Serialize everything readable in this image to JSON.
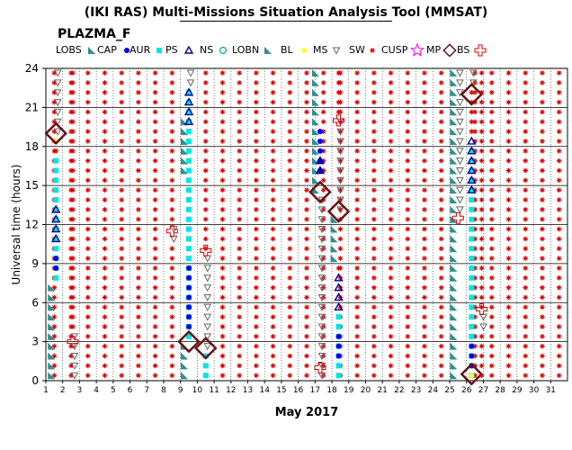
{
  "header": {
    "title": "(IKI RAS) Multi-Missions Situation Analysis Tool (MMSAT)",
    "subtitle": "PLAZMA_F"
  },
  "legend": [
    {
      "key": "lobs",
      "label": "LOBS",
      "icon": "teal-wedge"
    },
    {
      "key": "cap",
      "label": "CAP",
      "icon": "blue-dot"
    },
    {
      "key": "aur",
      "label": "AUR",
      "icon": "cyan-square"
    },
    {
      "key": "ps",
      "label": "PS",
      "icon": "blue-triangle"
    },
    {
      "key": "ns",
      "label": "NS",
      "icon": "cyan-circle"
    },
    {
      "key": "lobn",
      "label": "LOBN",
      "icon": "teal-wedge"
    },
    {
      "key": "bl",
      "label": "BL",
      "icon": "yellow-dot"
    },
    {
      "key": "ms",
      "label": "MS",
      "icon": "down-triangle"
    },
    {
      "key": "sw",
      "label": "SW",
      "icon": "red-asterisk"
    },
    {
      "key": "cusp",
      "label": "CUSP",
      "icon": "magenta-star"
    },
    {
      "key": "mp",
      "label": "MP",
      "icon": "dark-red-diamond"
    },
    {
      "key": "bs",
      "label": "BS",
      "icon": "red-cross"
    }
  ],
  "colors": {
    "lobs": "#2f8f8f",
    "lobn": "#2f8f8f",
    "cap": "#0000ee",
    "aur": "#00e5e5",
    "ps": "#000099",
    "ns": "#00aaaa",
    "bl": "#ffff33",
    "ms": "#666666",
    "sw": "#dd0000",
    "cusp": "#ee00ee",
    "mp": "#661111",
    "bs": "#dd0000",
    "grid": "#000000",
    "dotgrid": "#333333"
  },
  "chart_data": {
    "type": "scatter",
    "title": "(IKI RAS) Multi-Missions Situation Analysis Tool (MMSAT)",
    "subtitle": "PLAZMA_F",
    "xlabel": "May 2017",
    "ylabel": "Universal time (hours)",
    "x_ticks": [
      "1",
      "2",
      "3",
      "4",
      "5",
      "6",
      "7",
      "8",
      "9",
      "10",
      "11",
      "12",
      "13",
      "14",
      "15",
      "16",
      "17",
      "18",
      "19",
      "20",
      "21",
      "22",
      "23",
      "24",
      "25",
      "26",
      "27",
      "28",
      "29",
      "30",
      "31"
    ],
    "y_ticks": [
      "0",
      "3",
      "6",
      "9",
      "12",
      "15",
      "18",
      "21",
      "24"
    ],
    "xlim": [
      1,
      32
    ],
    "ylim": [
      0,
      24
    ],
    "grid": true,
    "legend_position": "top",
    "default_region": "SW",
    "day_columns": [
      {
        "day": 1.6,
        "segments": [
          {
            "region": "LOBS",
            "from": 0,
            "to": 7.5
          },
          {
            "region": "CAP",
            "from": 8.2,
            "to": 10
          },
          {
            "region": "AUR",
            "from": 7.8,
            "to": 17.5
          },
          {
            "region": "PS",
            "from": 10.5,
            "to": 13.5
          },
          {
            "region": "BL",
            "from": 17.8,
            "to": 18.4
          },
          {
            "region": "MS",
            "from": 18.5,
            "to": 24
          }
        ],
        "mp": [
          19
        ],
        "bs": []
      },
      {
        "day": 2.6,
        "segments": [
          {
            "region": "MS",
            "from": 0,
            "to": 3.5
          }
        ],
        "mp": [],
        "bs": [
          3
        ]
      },
      {
        "day": 8.5,
        "segments": [
          {
            "region": "MS",
            "from": 10.5,
            "to": 12
          }
        ],
        "mp": [],
        "bs": [
          11.5
        ]
      },
      {
        "day": 9.5,
        "segments": [
          {
            "region": "LOBS",
            "from": 0,
            "to": 3
          },
          {
            "region": "CAP",
            "from": 3.5,
            "to": 9
          },
          {
            "region": "AUR",
            "from": 3,
            "to": 22.5
          },
          {
            "region": "PS",
            "from": 19.5,
            "to": 22.5
          },
          {
            "region": "MS",
            "from": 22.5,
            "to": 24
          },
          {
            "region": "LOBN",
            "from": 15.5,
            "to": 20
          }
        ],
        "mp": [
          3
        ],
        "bs": []
      },
      {
        "day": 10.5,
        "segments": [
          {
            "region": "AUR",
            "from": 0,
            "to": 2
          },
          {
            "region": "MS",
            "from": 2.5,
            "to": 10
          }
        ],
        "mp": [
          2.5
        ],
        "bs": [
          10
        ]
      },
      {
        "day": 17.3,
        "segments": [
          {
            "region": "LOBS",
            "from": 14,
            "to": 24
          },
          {
            "region": "CAP",
            "from": 16,
            "to": 19.5
          },
          {
            "region": "PS",
            "from": 16,
            "to": 17
          },
          {
            "region": "MS",
            "from": 0,
            "to": 14
          }
        ],
        "mp": [
          14.5
        ],
        "bs": [
          1
        ]
      },
      {
        "day": 18.4,
        "segments": [
          {
            "region": "LOBS",
            "from": 9,
            "to": 13
          },
          {
            "region": "CAP",
            "from": 1.5,
            "to": 3.5
          },
          {
            "region": "AUR",
            "from": 0,
            "to": 5
          },
          {
            "region": "PS",
            "from": 5,
            "to": 8
          },
          {
            "region": "MS",
            "from": 13,
            "to": 20
          }
        ],
        "mp": [
          13
        ],
        "bs": [
          20
        ]
      },
      {
        "day": 25.5,
        "segments": [
          {
            "region": "LOBS",
            "from": 0,
            "to": 24
          },
          {
            "region": "MS",
            "from": 12.5,
            "to": 24
          }
        ],
        "mp": [],
        "bs": [
          12.5
        ]
      },
      {
        "day": 26.3,
        "segments": [
          {
            "region": "CAP",
            "from": 1,
            "to": 3
          },
          {
            "region": "AUR",
            "from": 0,
            "to": 18
          },
          {
            "region": "PS",
            "from": 14.5,
            "to": 18.5
          },
          {
            "region": "BL",
            "from": 0,
            "to": 0.5
          },
          {
            "region": "MS",
            "from": 22.5,
            "to": 24
          }
        ],
        "mp": [
          22,
          0.5
        ],
        "bs": []
      },
      {
        "day": 26.9,
        "segments": [
          {
            "region": "MS",
            "from": 3.5,
            "to": 5.5
          }
        ],
        "mp": [],
        "bs": [
          5.5
        ]
      }
    ]
  }
}
